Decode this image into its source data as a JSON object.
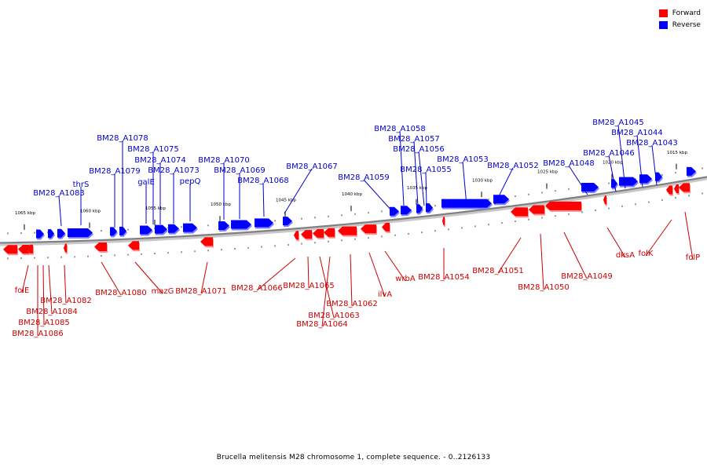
{
  "colors": {
    "forward": "#ff0000",
    "reverse": "#0000ff",
    "forward_label": "#cc0000",
    "reverse_label": "#0000cc",
    "backbone": "#808080"
  },
  "legend": {
    "forward_label": "Forward",
    "reverse_label": "Reverse"
  },
  "caption": "Brucella melitensis M28 chromosome 1, complete sequence. - 0..2126133",
  "scale_labels": [
    "1065 kbp",
    "1060 kbp",
    "1055 kbp",
    "1050 kbp",
    "1045 kbp",
    "1040 kbp",
    "1035 kbp",
    "1030 kbp",
    "1025 kbp",
    "1020 kbp",
    "1015 kbp"
  ],
  "reverse_genes": [
    "BM28_A1083",
    "thrS",
    "BM28_A1079",
    "BM28_A1078",
    "BM28_A1075",
    "galE",
    "BM28_A1074",
    "BM28_A1073",
    "pepQ",
    "BM28_A1070",
    "BM28_A1069",
    "BM28_A1068",
    "BM28_A1067",
    "BM28_A1059",
    "BM28_A1058",
    "BM28_A1057",
    "BM28_A1056",
    "BM28_A1055",
    "BM28_A1053",
    "BM28_A1052",
    "BM28_A1048",
    "BM28_A1046",
    "BM28_A1045",
    "BM28_A1044",
    "BM28_A1043"
  ],
  "forward_genes": [
    "folE",
    "BM28_A1082",
    "BM28_A1084",
    "BM28_A1085",
    "BM28_A1086",
    "BM28_A1080",
    "mazG",
    "BM28_A1071",
    "BM28_A1066",
    "BM28_A1065",
    "BM28_A1063",
    "BM28_A1064",
    "BM28_A1062",
    "ilvA",
    "wrbA",
    "BM28_A1054",
    "BM28_A1051",
    "BM28_A1050",
    "BM28_A1049",
    "dksA",
    "folK",
    "folP"
  ]
}
